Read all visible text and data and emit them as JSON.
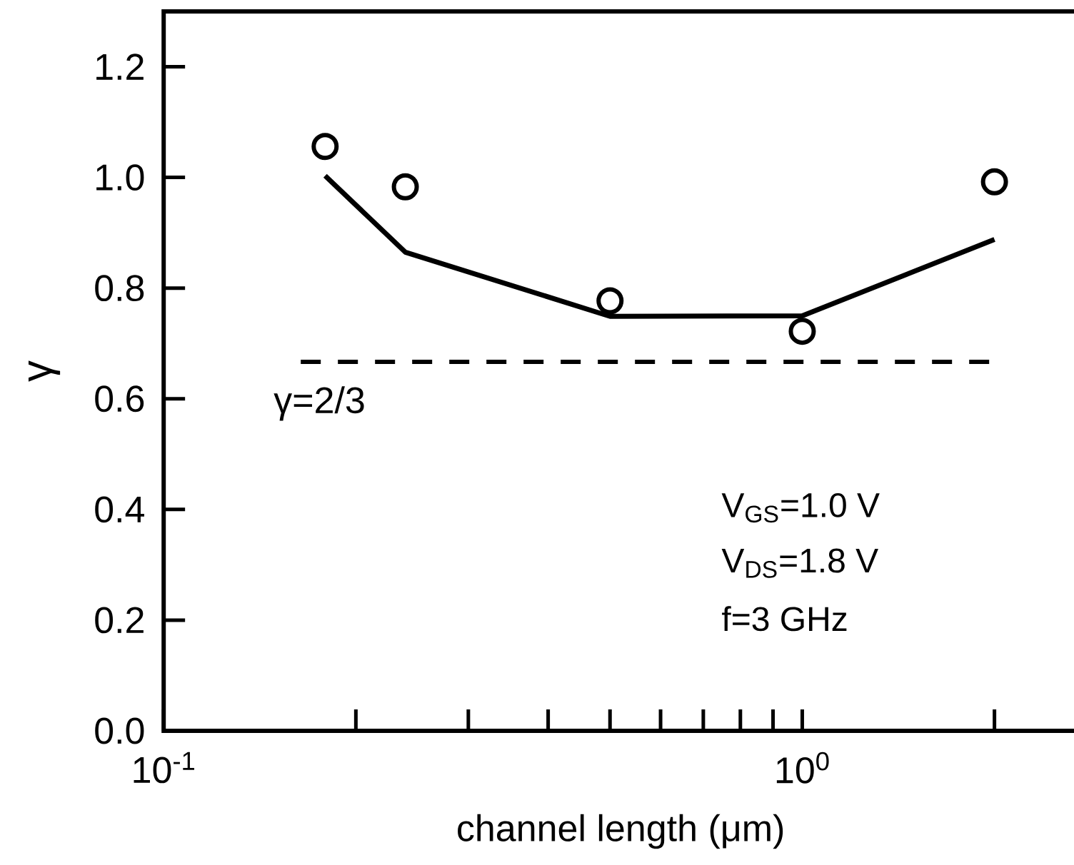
{
  "chart_data": {
    "type": "line",
    "xlabel": "channel length (μm)",
    "ylabel": "γ",
    "log": "x",
    "xlim": [
      0.1,
      2.7
    ],
    "ylim": [
      0,
      1.3
    ],
    "xticks": [
      {
        "value": 0.1,
        "label": "10$^{-1}$"
      },
      {
        "value": 0.2,
        "label": null
      },
      {
        "value": 0.3,
        "label": null
      },
      {
        "value": 0.4,
        "label": null
      },
      {
        "value": 0.5,
        "label": null
      },
      {
        "value": 0.6,
        "label": null
      },
      {
        "value": 0.7,
        "label": null
      },
      {
        "value": 0.8,
        "label": null
      },
      {
        "value": 0.9,
        "label": null
      },
      {
        "value": 1,
        "label": "10$^{0}$"
      },
      {
        "value": 2,
        "label": null
      }
    ],
    "yticks": [
      {
        "value": 0,
        "label": "0.0"
      },
      0.2,
      0.4,
      0.6,
      0.8,
      {
        "value": 1,
        "label": "1.0"
      },
      1.2
    ],
    "series": [
      {
        "type": "scatter",
        "marker": "circle",
        "color": "#000000",
        "x": [
          0.179,
          0.239,
          0.5,
          1.0,
          2.0
        ],
        "values": [
          1.056,
          0.983,
          0.777,
          0.722,
          0.992
        ]
      },
      {
        "color": "#000000",
        "line_style": "solid",
        "x": [
          0.179,
          0.239,
          0.5,
          1.0,
          2.0
        ],
        "values": [
          1.003,
          0.865,
          0.749,
          0.75,
          0.888
        ]
      }
    ],
    "ref_lines": [
      {
        "axis": "y",
        "value": 0.6666667,
        "line_style": "dashed",
        "color": "#000000"
      }
    ],
    "annotations": [
      "γ=2/3",
      "V$_{GS}$=1.0  V",
      "V$_{DS}$=1.8  V",
      "f=3  GHz"
    ],
    "grid": false
  }
}
